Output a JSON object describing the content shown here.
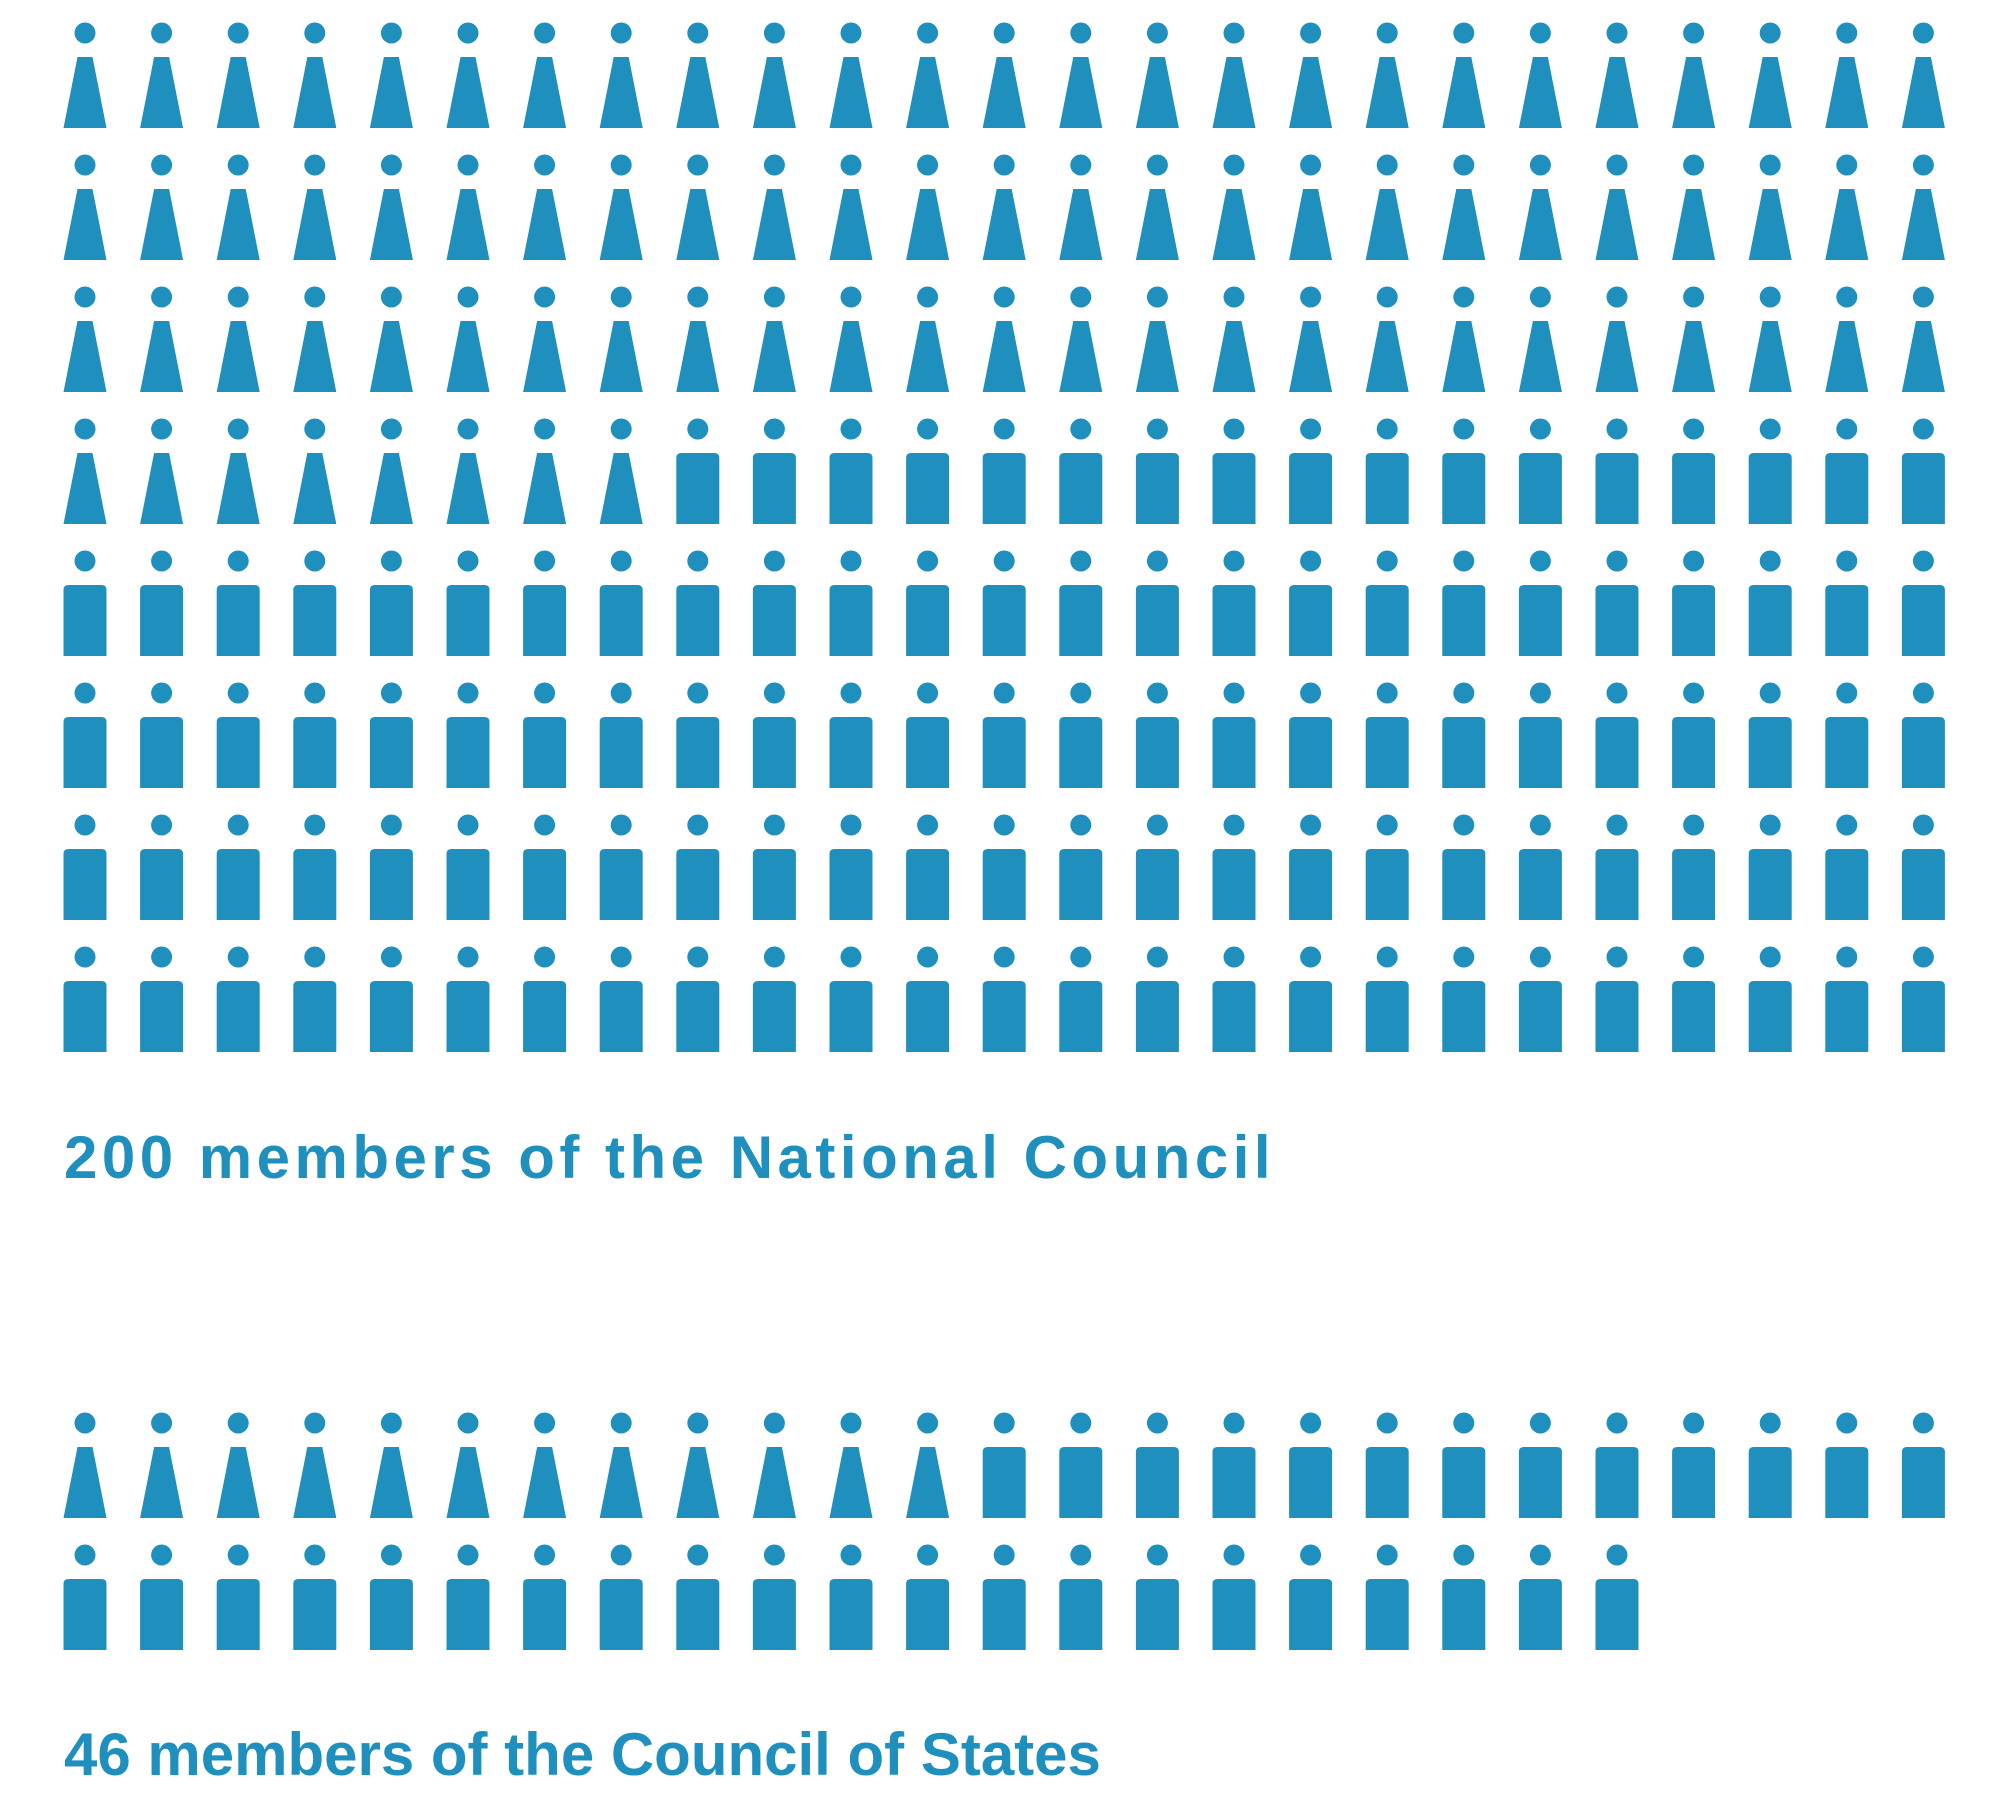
{
  "chart_data": [
    {
      "type": "pictogram",
      "title": "200 members of the National Council",
      "values": [
        83,
        117
      ],
      "color": "#1f8fbd"
    },
    {
      "type": "pictogram",
      "title": "46 members of the Council of States",
      "values": [
        12,
        34
      ],
      "color": "#1f8fbd"
    }
  ]
}
